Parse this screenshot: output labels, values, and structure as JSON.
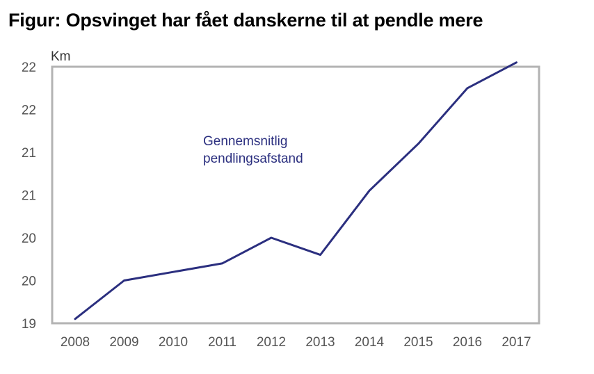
{
  "chart_data": {
    "type": "line",
    "title": "Figur: Opsvinget har fået danskerne til at pendle mere",
    "ylabel": "Km",
    "xlabel": "",
    "x": [
      "2008",
      "2009",
      "2010",
      "2011",
      "2012",
      "2013",
      "2014",
      "2015",
      "2016",
      "2017"
    ],
    "y_tick_labels": [
      "19",
      "20",
      "20",
      "21",
      "21",
      "22",
      "22"
    ],
    "ylim": [
      19,
      22
    ],
    "series": [
      {
        "name": "Gennemsnitlig pendlingsafstand",
        "values": [
          19.05,
          19.5,
          19.6,
          19.7,
          20.0,
          19.8,
          20.55,
          21.1,
          21.75,
          22.05
        ],
        "color": "#2b2f7f"
      }
    ],
    "annotation": [
      "Gennemsnitlig",
      "pendlingsafstand"
    ],
    "grid": false,
    "legend": "none",
    "frame_color": "#b3b3b3"
  }
}
